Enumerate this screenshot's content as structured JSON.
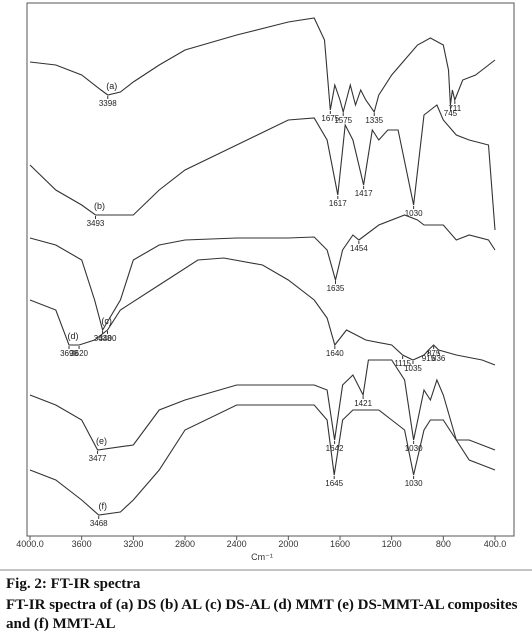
{
  "chart_data": {
    "type": "line",
    "x_label": "Cm⁻¹",
    "xlim": [
      4000,
      400
    ],
    "ylim": [
      0,
      530
    ],
    "xticks": [
      {
        "value": 4000,
        "label": "4000.0"
      },
      3600,
      3200,
      2800,
      2400,
      2000,
      1600,
      1200,
      800,
      {
        "value": 400,
        "label": "400.0"
      }
    ],
    "series": [
      {
        "name": "(a)",
        "color": "#333333",
        "x": [
          4000,
          3800,
          3600,
          3450,
          3398,
          3300,
          3200,
          3000,
          2800,
          2400,
          2000,
          1800,
          1720,
          1675,
          1640,
          1600,
          1575,
          1520,
          1480,
          1440,
          1400,
          1335,
          1300,
          1200,
          1100,
          1000,
          900,
          800,
          760,
          745,
          730,
          711,
          650,
          550,
          400
        ],
        "values": [
          473,
          470,
          460,
          445,
          440,
          443,
          453,
          470,
          485,
          500,
          513,
          517,
          495,
          425,
          450,
          435,
          423,
          450,
          430,
          445,
          435,
          423,
          440,
          460,
          475,
          490,
          497,
          490,
          465,
          430,
          445,
          435,
          455,
          460,
          475
        ],
        "peaks": [
          3398,
          1675,
          1575,
          1335,
          745,
          711
        ]
      },
      {
        "name": "(b)",
        "color": "#333333",
        "x": [
          4000,
          3800,
          3600,
          3493,
          3200,
          3000,
          2800,
          2400,
          2000,
          1800,
          1700,
          1617,
          1560,
          1500,
          1417,
          1350,
          1300,
          1230,
          1150,
          1030,
          950,
          900,
          850,
          800,
          700,
          600,
          450,
          400
        ],
        "values": [
          370,
          345,
          330,
          320,
          320,
          345,
          365,
          390,
          415,
          417,
          395,
          340,
          410,
          395,
          350,
          405,
          395,
          405,
          405,
          330,
          420,
          425,
          430,
          415,
          400,
          395,
          390,
          305
        ],
        "peaks": [
          3493,
          1617,
          1417,
          1030
        ]
      },
      {
        "name": "(c)",
        "color": "#333333",
        "x": [
          4000,
          3800,
          3600,
          3500,
          3438,
          3300,
          3200,
          3000,
          2800,
          2400,
          2000,
          1800,
          1700,
          1635,
          1580,
          1500,
          1454,
          1300,
          1100,
          1000,
          950,
          800,
          700,
          600,
          450,
          400
        ],
        "values": [
          297,
          290,
          275,
          235,
          205,
          235,
          275,
          290,
          295,
          297,
          297,
          298,
          285,
          255,
          285,
          300,
          295,
          310,
          320,
          315,
          310,
          310,
          295,
          300,
          295,
          285
        ],
        "peaks": [
          3438,
          1635,
          1454
        ]
      },
      {
        "name": "(d)",
        "color": "#333333",
        "x": [
          4000,
          3800,
          3698,
          3620,
          3500,
          3400,
          3300,
          3000,
          2700,
          2500,
          2200,
          2000,
          1800,
          1700,
          1640,
          1550,
          1400,
          1200,
          1115,
          1035,
          950,
          915,
          875,
          836,
          700,
          500,
          400
        ],
        "values": [
          235,
          225,
          190,
          190,
          195,
          205,
          225,
          250,
          275,
          277,
          270,
          255,
          235,
          217,
          190,
          205,
          195,
          190,
          180,
          175,
          180,
          185,
          190,
          185,
          180,
          175,
          170
        ],
        "peaks": [
          3698,
          3620,
          3400,
          1640,
          1115,
          1035,
          915,
          875,
          836
        ]
      },
      {
        "name": "(e)",
        "color": "#333333",
        "x": [
          4000,
          3800,
          3600,
          3477,
          3200,
          3000,
          2800,
          2400,
          2000,
          1800,
          1700,
          1642,
          1580,
          1500,
          1421,
          1380,
          1300,
          1200,
          1100,
          1030,
          950,
          900,
          850,
          800,
          700,
          600,
          500,
          400
        ],
        "values": [
          140,
          130,
          115,
          85,
          90,
          125,
          135,
          150,
          150,
          150,
          145,
          95,
          150,
          160,
          140,
          175,
          175,
          175,
          155,
          95,
          145,
          135,
          155,
          140,
          95,
          95,
          90,
          85
        ],
        "peaks": [
          3477,
          1642,
          1421,
          1030
        ]
      },
      {
        "name": "(f)",
        "color": "#333333",
        "x": [
          4000,
          3800,
          3600,
          3468,
          3300,
          3200,
          3000,
          2800,
          2400,
          2000,
          1800,
          1700,
          1645,
          1580,
          1500,
          1400,
          1300,
          1200,
          1100,
          1030,
          950,
          900,
          800,
          700,
          600,
          500,
          400
        ],
        "values": [
          65,
          55,
          35,
          20,
          23,
          35,
          65,
          105,
          130,
          130,
          130,
          115,
          60,
          115,
          125,
          125,
          125,
          115,
          105,
          60,
          105,
          115,
          115,
          95,
          75,
          70,
          65
        ],
        "peaks": [
          3468,
          1645,
          1030
        ]
      }
    ]
  },
  "caption": {
    "title": "Fig. 2: FT-IR spectra",
    "text": "FT-IR spectra of (a) DS (b) AL (c) DS-AL (d) MMT (e) DS-MMT-AL composites and (f) MMT-AL"
  }
}
